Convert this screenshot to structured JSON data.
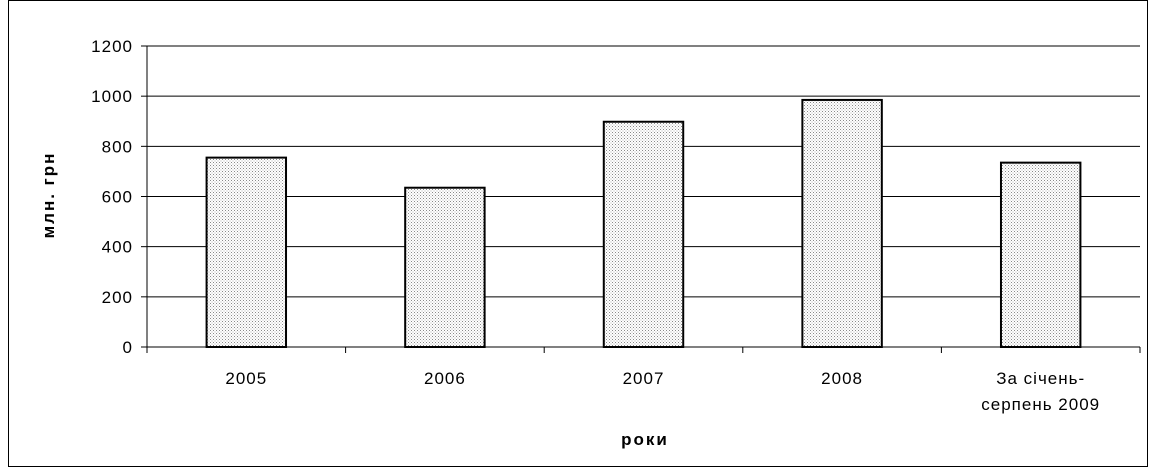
{
  "chart_data": {
    "type": "bar",
    "categories": [
      "2005",
      "2006",
      "2007",
      "2008",
      [
        "За січень-",
        "серпень 2009"
      ]
    ],
    "values": [
      755,
      635,
      898,
      985,
      735
    ],
    "title": "",
    "xlabel": "роки",
    "ylabel": "млн. грн",
    "ylim": [
      0,
      1200
    ],
    "yticks": [
      0,
      200,
      400,
      600,
      800,
      1000,
      1200
    ],
    "grid": true,
    "legend": "none",
    "colors": {
      "bar_fill": "#e6e6e6",
      "bar_stroke": "#000000",
      "grid": "#000000",
      "axis": "#000000"
    }
  }
}
